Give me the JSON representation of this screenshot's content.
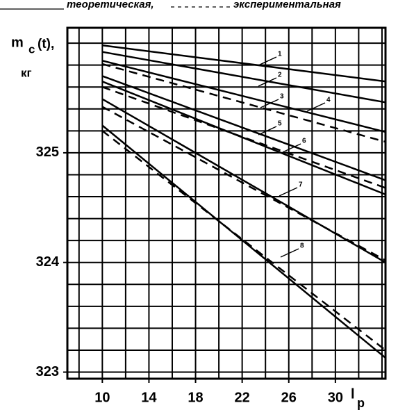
{
  "chart_data": {
    "type": "line",
    "legend": [
      {
        "label": "теоретическая,",
        "dashed": false
      },
      {
        "label": "экспериментальная",
        "dashed": true
      }
    ],
    "ylabel": "m",
    "ylabel_sub": "c",
    "ylabel_rest": "(t),",
    "yunit": "кг",
    "xlabel": "l",
    "xlabel_sub": "p",
    "x": [
      10,
      34.3
    ],
    "xlim": [
      7,
      34.3
    ],
    "ylim": [
      322.94,
      326.14
    ],
    "xticks": [
      10,
      14,
      18,
      22,
      26,
      30
    ],
    "yticks": [
      323,
      324,
      325
    ],
    "xgrid": [
      8,
      10,
      12,
      14,
      16,
      18,
      20,
      22,
      24,
      26,
      28,
      30,
      32,
      34
    ],
    "ygrid": [
      323,
      323.2,
      323.4,
      323.6,
      323.8,
      324,
      324.2,
      324.4,
      324.6,
      324.8,
      325,
      325.2,
      325.4,
      325.6,
      325.8,
      326
    ],
    "grid": true,
    "color": "#000000",
    "series": [
      {
        "name": "1",
        "values": [
          325.98,
          325.65
        ],
        "dashed": false
      },
      {
        "name": "2",
        "values": [
          325.92,
          325.46
        ],
        "dashed": false
      },
      {
        "name": "3",
        "values": [
          325.84,
          325.19
        ],
        "dashed": false
      },
      {
        "name": "4",
        "values": [
          325.81,
          325.1
        ],
        "dashed": true
      },
      {
        "name": "5",
        "values": [
          325.7,
          324.75
        ],
        "dashed": false
      },
      {
        "name": "6",
        "values": [
          325.65,
          324.62
        ],
        "dashed": false
      },
      {
        "name": "7",
        "values": [
          325.49,
          324.0
        ],
        "dashed": false
      },
      {
        "name": "8",
        "values": [
          325.25,
          323.13
        ],
        "dashed": false
      },
      {
        "values": [
          325.6,
          324.68
        ],
        "dashed": true
      },
      {
        "values": [
          325.42,
          324.02
        ],
        "dashed": true
      },
      {
        "values": [
          325.2,
          323.2
        ],
        "dashed": true
      }
    ]
  }
}
